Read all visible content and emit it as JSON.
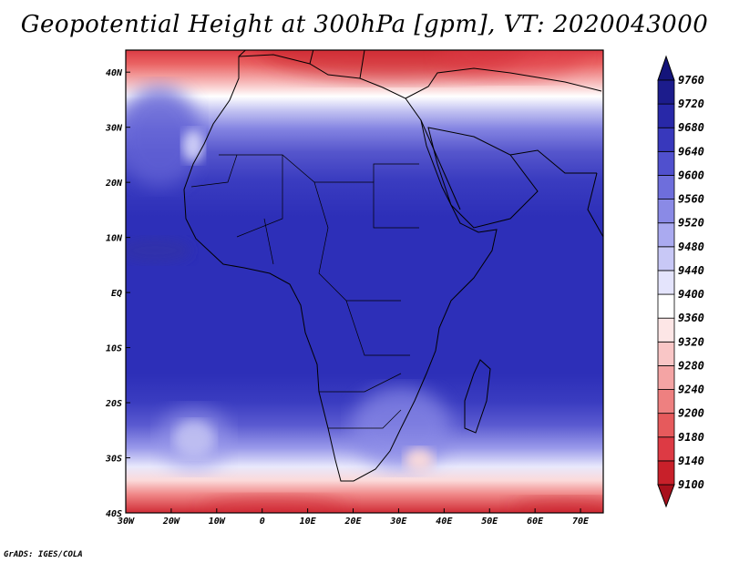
{
  "title": "Geopotential Height at 300hPa [gpm], VT: 2020043000",
  "credit": "GrADS: IGES/COLA",
  "chart_data": {
    "type": "heatmap",
    "title": "Geopotential Height at 300hPa [gpm], VT: 2020043000",
    "x_ticks": [
      "30W",
      "20W",
      "10W",
      "0",
      "10E",
      "20E",
      "30E",
      "40E",
      "50E",
      "60E",
      "70E"
    ],
    "y_ticks": [
      "40N",
      "30N",
      "20N",
      "10N",
      "EQ",
      "10S",
      "20S",
      "30S",
      "40S"
    ],
    "lon_range": [
      -30,
      75
    ],
    "lat_range": [
      -40,
      44
    ],
    "colorbar": {
      "levels": [
        9100,
        9140,
        9180,
        9200,
        9240,
        9280,
        9320,
        9360,
        9400,
        9440,
        9480,
        9520,
        9560,
        9600,
        9640,
        9680,
        9720,
        9760
      ],
      "colors": [
        "#a8101c",
        "#c8202a",
        "#dd3a44",
        "#e65a5c",
        "#ee8080",
        "#f4a4a4",
        "#f9c6c6",
        "#fde6e6",
        "#ffffff",
        "#e4e4fc",
        "#c8c8f6",
        "#aaaaf0",
        "#8a8ae6",
        "#6e6edc",
        "#5050ce",
        "#3838bc",
        "#2828a8",
        "#1c1c8c",
        "#14147a"
      ]
    },
    "field_background": "#2d2fb8"
  }
}
